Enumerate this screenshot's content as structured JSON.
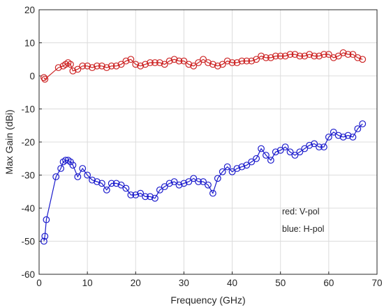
{
  "chart_data": {
    "type": "line",
    "xlabel": "Frequency (GHz)",
    "ylabel": "Max Gain (dBi)",
    "xlim": [
      0,
      70
    ],
    "ylim": [
      -60,
      20
    ],
    "xticks": [
      0,
      10,
      20,
      30,
      40,
      50,
      60,
      70
    ],
    "yticks": [
      -60,
      -50,
      -40,
      -30,
      -20,
      -10,
      0,
      10,
      20
    ],
    "grid": true,
    "annotations": [
      "red: V-pol",
      "blue: H-pol"
    ],
    "annotation_position": "bottom-right",
    "series": [
      {
        "color": "#cc2222",
        "marker": "circle",
        "x": [
          1,
          1.2,
          4,
          5,
          5.5,
          6,
          6.5,
          7,
          8,
          9,
          10,
          11,
          12,
          13,
          14,
          15,
          16,
          17,
          18,
          19,
          20,
          21,
          22,
          23,
          24,
          25,
          26,
          27,
          28,
          29,
          30,
          31,
          32,
          33,
          34,
          35,
          36,
          37,
          38,
          39,
          40,
          41,
          42,
          43,
          44,
          45,
          46,
          47,
          48,
          49,
          50,
          51,
          52,
          53,
          54,
          55,
          56,
          57,
          58,
          59,
          60,
          61,
          62,
          63,
          64,
          65,
          66,
          67
        ],
        "y": [
          -0.5,
          -1,
          2.5,
          3,
          3.5,
          4,
          3.5,
          1.5,
          2,
          3,
          3,
          2.5,
          3,
          3,
          2.5,
          3,
          3,
          3.5,
          4.5,
          5,
          3.5,
          3,
          3.5,
          4,
          4,
          4,
          3.5,
          4.5,
          5,
          4.5,
          4.5,
          3.5,
          3,
          4,
          5,
          4,
          3.5,
          3,
          3.5,
          4.5,
          4,
          4,
          4.5,
          4.5,
          4.5,
          5,
          6,
          5.5,
          5.5,
          6,
          6,
          6,
          6.5,
          6.5,
          6,
          6,
          6.5,
          6,
          6,
          6.5,
          6.5,
          5.5,
          6,
          7,
          6.5,
          6.5,
          5.5,
          5
        ]
      },
      {
        "color": "#1a1acc",
        "marker": "circle",
        "x": [
          1,
          1.2,
          1.5,
          3.5,
          4.5,
          5,
          5.5,
          6,
          6.5,
          7,
          8,
          9,
          10,
          11,
          12,
          13,
          14,
          15,
          16,
          17,
          18,
          19,
          20,
          21,
          22,
          23,
          24,
          25,
          26,
          27,
          28,
          29,
          30,
          31,
          32,
          33,
          34,
          35,
          36,
          37,
          38,
          39,
          40,
          41,
          42,
          43,
          44,
          45,
          46,
          47,
          48,
          49,
          50,
          51,
          52,
          53,
          54,
          55,
          56,
          57,
          58,
          59,
          60,
          61,
          62,
          63,
          64,
          65,
          66,
          67
        ],
        "y": [
          -50,
          -48.5,
          -43.5,
          -30.5,
          -28,
          -26,
          -25.5,
          -25.5,
          -26,
          -27,
          -30.5,
          -28,
          -30,
          -31.5,
          -32,
          -32.5,
          -34.5,
          -32.5,
          -32.5,
          -33,
          -34,
          -36,
          -36,
          -35.5,
          -36.5,
          -36.5,
          -37,
          -34.5,
          -33.5,
          -32.5,
          -32,
          -33,
          -32.5,
          -32,
          -31,
          -32,
          -32,
          -33,
          -35.5,
          -31,
          -29,
          -27.5,
          -29,
          -28,
          -27.5,
          -27,
          -26,
          -25,
          -22,
          -24,
          -25.5,
          -23,
          -22.5,
          -21.5,
          -23,
          -24,
          -23,
          -22,
          -21,
          -20.5,
          -21.5,
          -21.5,
          -18.5,
          -17,
          -18,
          -18.5,
          -18,
          -18.5,
          -16,
          -14.5
        ]
      }
    ]
  }
}
